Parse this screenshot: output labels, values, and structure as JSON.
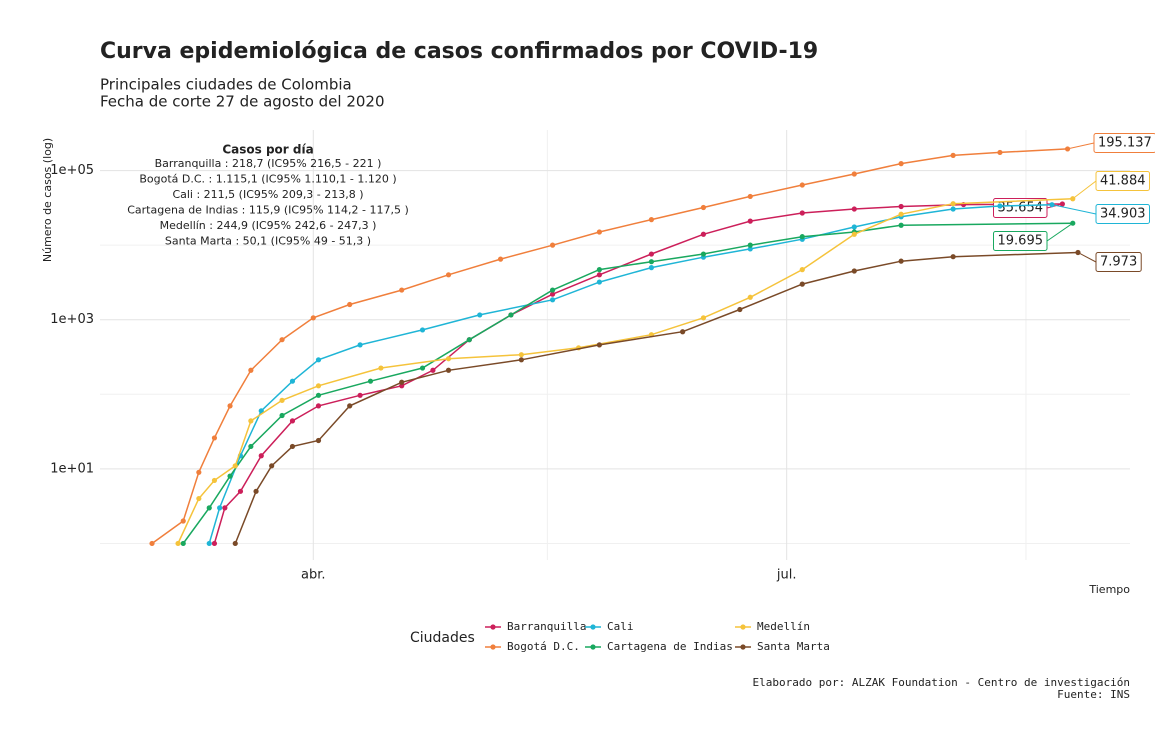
{
  "chart_data": {
    "type": "line",
    "title": "Curva epidemiológica de casos confirmados por COVID-19",
    "subtitle": [
      "Principales ciudades de Colombia",
      "Fecha de corte 27 de agosto del 2020"
    ],
    "y_label": "Número de casos (log)",
    "x_label": "Tiempo",
    "caption": [
      "Elaborado por: ALZAK Foundation - Centro de investigación",
      "Fuente: INS"
    ],
    "legend_title": "Ciudades",
    "annotation": {
      "title": "Casos por día",
      "lines": [
        "Barranquilla : 218,7 (IC95% 216,5 - 221 )",
        "Bogotá D.C. : 1.115,1 (IC95% 1.110,1 - 1.120 )",
        "Cali : 211,5 (IC95% 209,3 - 213,8 )",
        "Cartagena de Indias : 115,9 (IC95% 114,2 - 117,5 )",
        "Medellín : 244,9 (IC95% 242,6 - 247,3 )",
        "Santa Marta : 50,1 (IC95% 49 - 51,3 )"
      ]
    },
    "log_y": true,
    "grid": true,
    "xlim": [
      51,
      249
    ],
    "xticks": [
      {
        "value": 92,
        "label": "abr."
      },
      {
        "value": 183,
        "label": "jul."
      }
    ],
    "xminor": [
      137,
      229
    ],
    "ylim": [
      0.6,
      350000
    ],
    "yticks": [
      {
        "value": 10,
        "label": "1e+01"
      },
      {
        "value": 1000,
        "label": "1e+03"
      },
      {
        "value": 100000,
        "label": "1e+05"
      }
    ],
    "yminor": [
      1,
      100,
      10000
    ],
    "series": [
      {
        "name": "Barranquilla",
        "color": "#cc1f5a",
        "x": [
          73,
          75,
          78,
          82,
          88,
          93,
          101,
          109,
          115,
          122,
          130,
          138,
          147,
          157,
          167,
          176,
          186,
          196,
          205,
          217,
          236
        ],
        "values": [
          1,
          3,
          5,
          15,
          44,
          70,
          97,
          130,
          210,
          540,
          1160,
          2200,
          4000,
          7600,
          14000,
          21000,
          27000,
          30500,
          33000,
          35000,
          35654
        ],
        "value_labels": [
          null,
          null,
          null,
          null,
          null,
          null,
          null,
          null,
          null,
          null,
          null,
          null,
          null,
          null,
          null,
          null,
          null,
          null,
          null,
          null,
          "35.654"
        ]
      },
      {
        "name": "Bogotá D.C.",
        "color": "#f07f3c",
        "x": [
          61,
          67,
          70,
          73,
          76,
          80,
          86,
          92,
          99,
          109,
          118,
          128,
          138,
          147,
          157,
          167,
          176,
          186,
          196,
          205,
          215,
          224,
          237
        ],
        "values": [
          1,
          2,
          9,
          26,
          70,
          210,
          540,
          1060,
          1600,
          2500,
          4000,
          6500,
          10000,
          15000,
          22000,
          32000,
          45000,
          64000,
          90000,
          124000,
          160000,
          175000,
          195137
        ],
        "value_labels": [
          null,
          null,
          null,
          null,
          null,
          null,
          null,
          null,
          null,
          null,
          null,
          null,
          null,
          null,
          null,
          null,
          null,
          null,
          null,
          null,
          null,
          null,
          "195.137"
        ]
      },
      {
        "name": "Cali",
        "color": "#1fb5d6",
        "x": [
          72,
          74,
          78,
          82,
          88,
          93,
          101,
          113,
          124,
          138,
          147,
          157,
          167,
          176,
          186,
          196,
          205,
          215,
          224,
          234
        ],
        "values": [
          1,
          3,
          15,
          60,
          150,
          290,
          460,
          730,
          1160,
          1850,
          3200,
          5000,
          6900,
          8900,
          12000,
          17500,
          24000,
          30500,
          33500,
          34903
        ],
        "value_labels": [
          null,
          null,
          null,
          null,
          null,
          null,
          null,
          null,
          null,
          null,
          null,
          null,
          null,
          null,
          null,
          null,
          null,
          null,
          null,
          "34.903"
        ]
      },
      {
        "name": "Cartagena de Indias",
        "color": "#19a85f",
        "x": [
          67,
          72,
          76,
          80,
          86,
          93,
          103,
          113,
          122,
          130,
          138,
          147,
          157,
          167,
          176,
          186,
          196,
          205,
          238
        ],
        "values": [
          1,
          3,
          8,
          20,
          52,
          97,
          150,
          225,
          540,
          1160,
          2500,
          4700,
          6000,
          7600,
          10000,
          13000,
          15000,
          18500,
          19695
        ],
        "value_labels": [
          null,
          null,
          null,
          null,
          null,
          null,
          null,
          null,
          null,
          null,
          null,
          null,
          null,
          null,
          null,
          null,
          null,
          null,
          "19.695"
        ]
      },
      {
        "name": "Medellín",
        "color": "#f5c33b",
        "x": [
          66,
          70,
          73,
          77,
          80,
          86,
          93,
          105,
          118,
          132,
          143,
          157,
          167,
          176,
          186,
          196,
          205,
          215,
          238
        ],
        "values": [
          1,
          4,
          7,
          11,
          44,
          83,
          130,
          225,
          300,
          340,
          420,
          630,
          1060,
          2000,
          4700,
          14000,
          26000,
          36000,
          41884
        ],
        "value_labels": [
          null,
          null,
          null,
          null,
          null,
          null,
          null,
          null,
          null,
          null,
          null,
          null,
          null,
          null,
          null,
          null,
          null,
          null,
          "41.884"
        ]
      },
      {
        "name": "Santa Marta",
        "color": "#7a4a28",
        "x": [
          77,
          81,
          84,
          88,
          93,
          99,
          109,
          118,
          132,
          147,
          163,
          174,
          186,
          196,
          205,
          215,
          239
        ],
        "values": [
          1,
          5,
          11,
          20,
          24,
          70,
          145,
          210,
          290,
          460,
          690,
          1370,
          3000,
          4500,
          6100,
          7000,
          7973
        ],
        "value_labels": [
          null,
          null,
          null,
          null,
          null,
          null,
          null,
          null,
          null,
          null,
          null,
          null,
          null,
          null,
          null,
          null,
          "7.973"
        ]
      }
    ]
  }
}
